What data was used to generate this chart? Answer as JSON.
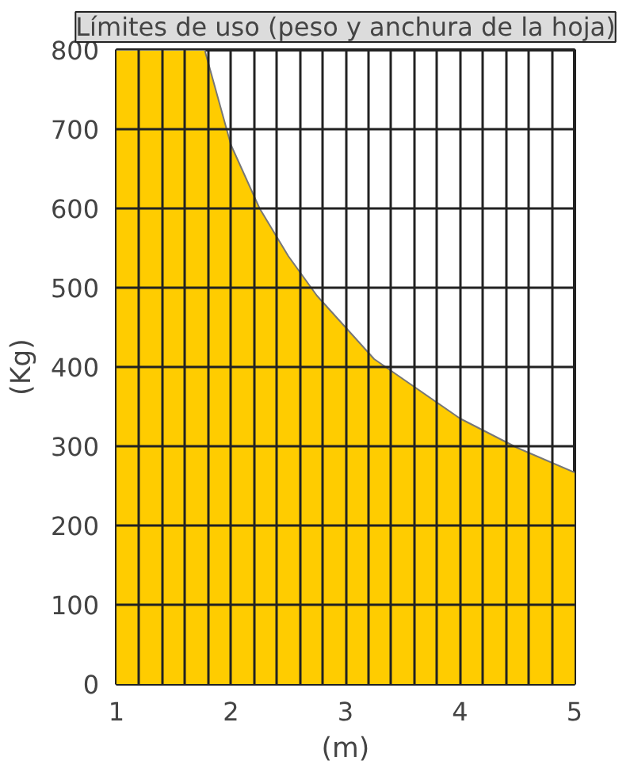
{
  "chart_data": {
    "type": "area",
    "title": "Límites de uso (peso y anchura de la hoja)",
    "xlabel": "(m)",
    "ylabel": "(Kg)",
    "x": [
      1,
      1.77,
      2.0,
      2.25,
      2.5,
      2.75,
      3.0,
      3.25,
      3.5,
      4.0,
      4.5,
      5.0
    ],
    "series": [
      {
        "color": "#ffcc00",
        "values": [
          800,
          800,
          680,
          600,
          540,
          490,
          450,
          410,
          385,
          335,
          298,
          267
        ]
      }
    ],
    "xlim": [
      1,
      5
    ],
    "ylim": [
      0,
      800
    ],
    "xticks": [
      1,
      {
        "value": 1.2,
        "label": null
      },
      {
        "value": 1.4,
        "label": null
      },
      {
        "value": 1.6,
        "label": null
      },
      {
        "value": 1.8,
        "label": null
      },
      2,
      {
        "value": 2.2,
        "label": null
      },
      {
        "value": 2.4,
        "label": null
      },
      {
        "value": 2.6,
        "label": null
      },
      {
        "value": 2.8,
        "label": null
      },
      3,
      {
        "value": 3.2,
        "label": null
      },
      {
        "value": 3.4,
        "label": null
      },
      {
        "value": 3.6,
        "label": null
      },
      {
        "value": 3.8,
        "label": null
      },
      4,
      {
        "value": 4.2,
        "label": null
      },
      {
        "value": 4.4,
        "label": null
      },
      {
        "value": 4.6,
        "label": null
      },
      {
        "value": 4.8,
        "label": null
      },
      5
    ],
    "yticks": [
      0,
      100,
      200,
      300,
      400,
      500,
      600,
      700,
      800
    ],
    "grid": true
  }
}
